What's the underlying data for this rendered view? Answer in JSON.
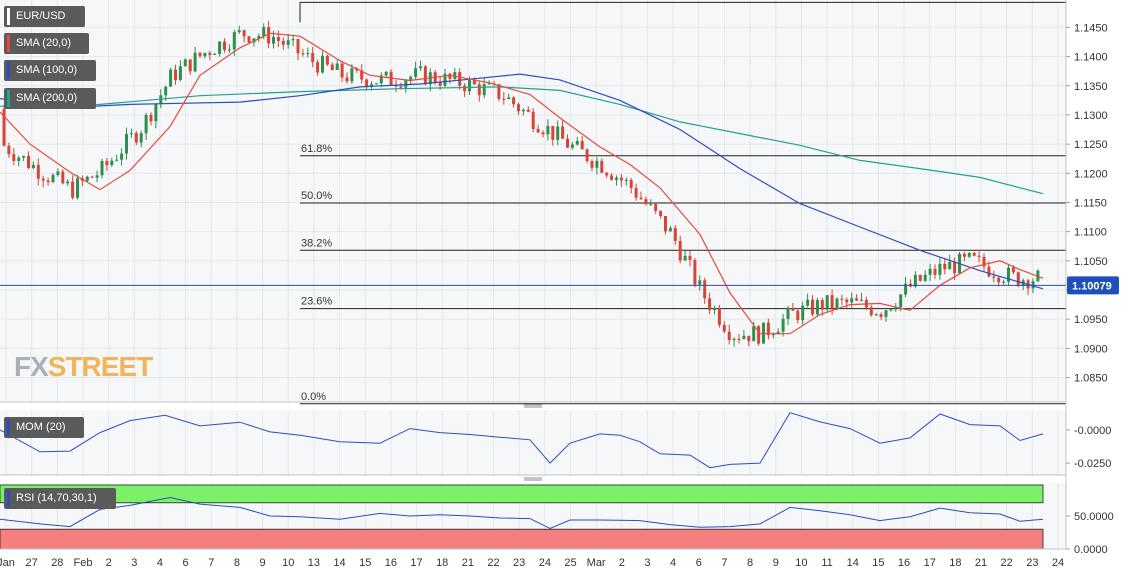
{
  "chart_data": [
    {
      "type": "candlestick",
      "symbol": "EUR/USD",
      "indicators": [
        {
          "label": "SMA (20,0)",
          "color": "#e84a3a"
        },
        {
          "label": "SMA (100,0)",
          "color": "#2a4ec0"
        },
        {
          "label": "SMA (200,0)",
          "color": "#22a38a"
        }
      ],
      "y_ticks": [
        "1.1450",
        "1.1400",
        "1.1350",
        "1.1300",
        "1.1250",
        "1.1200",
        "1.1150",
        "1.1100",
        "1.1050",
        "1.1000",
        "1.0950",
        "1.0900",
        "1.0850"
      ],
      "ylim": [
        1.0808,
        1.1497
      ],
      "last_price": "1.10079",
      "last_price_value": 1.10079,
      "fibonacci": [
        {
          "label": "61.8%",
          "value": 1.123
        },
        {
          "label": "50.0%",
          "value": 1.1149
        },
        {
          "label": "38.2%",
          "value": 1.1068
        },
        {
          "label": "23.6%",
          "value": 1.0968
        },
        {
          "label": "0.0%",
          "value": 1.0805
        }
      ],
      "swing_high": 1.1493,
      "x_ticks": [
        "Jan",
        "27",
        "28",
        "Feb",
        "2",
        "3",
        "4",
        "6",
        "7",
        "8",
        "9",
        "10",
        "13",
        "14",
        "15",
        "16",
        "17",
        "18",
        "21",
        "22",
        "23",
        "24",
        "25",
        "Mar",
        "2",
        "3",
        "4",
        "6",
        "7",
        "8",
        "9",
        "10",
        "11",
        "14",
        "15",
        "16",
        "17",
        "18",
        "21",
        "22",
        "23",
        "24"
      ],
      "sma20_points": [
        [
          0,
          1.1305
        ],
        [
          30,
          1.125
        ],
        [
          70,
          1.1202
        ],
        [
          100,
          1.1172
        ],
        [
          130,
          1.1205
        ],
        [
          170,
          1.128
        ],
        [
          200,
          1.1368
        ],
        [
          240,
          1.1415
        ],
        [
          270,
          1.144
        ],
        [
          300,
          1.1435
        ],
        [
          340,
          1.1393
        ],
        [
          370,
          1.1368
        ],
        [
          410,
          1.1359
        ],
        [
          450,
          1.1368
        ],
        [
          490,
          1.1355
        ],
        [
          530,
          1.1335
        ],
        [
          560,
          1.1295
        ],
        [
          600,
          1.1245
        ],
        [
          630,
          1.1215
        ],
        [
          660,
          1.1175
        ],
        [
          700,
          1.1095
        ],
        [
          730,
          1.0995
        ],
        [
          760,
          1.0925
        ],
        [
          790,
          1.0925
        ],
        [
          820,
          1.0958
        ],
        [
          850,
          1.0975
        ],
        [
          880,
          1.0977
        ],
        [
          910,
          1.0965
        ],
        [
          940,
          1.1008
        ],
        [
          970,
          1.1038
        ],
        [
          1000,
          1.105
        ],
        [
          1020,
          1.1035
        ],
        [
          1043,
          1.102
        ]
      ],
      "sma100_points": [
        [
          0,
          1.1328
        ],
        [
          70,
          1.1313
        ],
        [
          130,
          1.1318
        ],
        [
          180,
          1.132
        ],
        [
          240,
          1.1322
        ],
        [
          300,
          1.1333
        ],
        [
          360,
          1.1348
        ],
        [
          420,
          1.1353
        ],
        [
          480,
          1.1363
        ],
        [
          520,
          1.137
        ],
        [
          560,
          1.136
        ],
        [
          620,
          1.1325
        ],
        [
          680,
          1.1275
        ],
        [
          740,
          1.1208
        ],
        [
          800,
          1.1148
        ],
        [
          860,
          1.1108
        ],
        [
          920,
          1.1068
        ],
        [
          980,
          1.1033
        ],
        [
          1043,
          1.1002
        ]
      ],
      "sma200_points": [
        [
          0,
          1.1315
        ],
        [
          100,
          1.1318
        ],
        [
          200,
          1.1333
        ],
        [
          300,
          1.134
        ],
        [
          400,
          1.1345
        ],
        [
          500,
          1.1348
        ],
        [
          560,
          1.1342
        ],
        [
          620,
          1.1318
        ],
        [
          680,
          1.1288
        ],
        [
          740,
          1.1268
        ],
        [
          800,
          1.1248
        ],
        [
          860,
          1.1222
        ],
        [
          920,
          1.1208
        ],
        [
          980,
          1.1193
        ],
        [
          1043,
          1.1165
        ]
      ]
    },
    {
      "type": "line",
      "label": "MOM (20)",
      "color": "#2a4ec0",
      "y_ticks": [
        "-0.0000",
        "-0.0250"
      ],
      "ylim": [
        -0.034,
        0.015
      ],
      "points": [
        [
          0,
          0.0
        ],
        [
          40,
          -0.0165
        ],
        [
          70,
          -0.016
        ],
        [
          100,
          -0.002
        ],
        [
          130,
          0.007
        ],
        [
          165,
          0.011
        ],
        [
          200,
          0.003
        ],
        [
          240,
          0.0058
        ],
        [
          270,
          -0.0015
        ],
        [
          300,
          -0.004
        ],
        [
          340,
          -0.009
        ],
        [
          380,
          -0.01
        ],
        [
          410,
          0.001
        ],
        [
          440,
          -0.002
        ],
        [
          470,
          -0.0035
        ],
        [
          500,
          -0.0055
        ],
        [
          530,
          -0.0075
        ],
        [
          550,
          -0.025
        ],
        [
          570,
          -0.01
        ],
        [
          600,
          -0.003
        ],
        [
          620,
          -0.004
        ],
        [
          640,
          -0.009
        ],
        [
          660,
          -0.018
        ],
        [
          690,
          -0.019
        ],
        [
          710,
          -0.0285
        ],
        [
          730,
          -0.026
        ],
        [
          760,
          -0.025
        ],
        [
          790,
          0.013
        ],
        [
          820,
          0.006
        ],
        [
          850,
          0.001
        ],
        [
          880,
          -0.01
        ],
        [
          910,
          -0.006
        ],
        [
          940,
          0.012
        ],
        [
          970,
          0.004
        ],
        [
          1000,
          0.003
        ],
        [
          1020,
          -0.008
        ],
        [
          1043,
          -0.003
        ]
      ]
    },
    {
      "type": "line",
      "label": "RSI (14,70,30,1)",
      "color": "#2a4ec0",
      "overbought": 70,
      "oversold": 30,
      "y_ticks": [
        "50.0000",
        "0.0000"
      ],
      "ylim": [
        0,
        100
      ],
      "points": [
        [
          0,
          45
        ],
        [
          40,
          38
        ],
        [
          70,
          34
        ],
        [
          100,
          60
        ],
        [
          130,
          66
        ],
        [
          170,
          78
        ],
        [
          200,
          68
        ],
        [
          240,
          63
        ],
        [
          270,
          50
        ],
        [
          300,
          49
        ],
        [
          340,
          45
        ],
        [
          380,
          54
        ],
        [
          410,
          50
        ],
        [
          440,
          52
        ],
        [
          470,
          50
        ],
        [
          500,
          47
        ],
        [
          530,
          46
        ],
        [
          550,
          31
        ],
        [
          570,
          44
        ],
        [
          600,
          44
        ],
        [
          640,
          43
        ],
        [
          670,
          37
        ],
        [
          700,
          33
        ],
        [
          730,
          34
        ],
        [
          760,
          38
        ],
        [
          790,
          63
        ],
        [
          820,
          58
        ],
        [
          850,
          52
        ],
        [
          880,
          43
        ],
        [
          910,
          49
        ],
        [
          940,
          62
        ],
        [
          970,
          55
        ],
        [
          1000,
          53
        ],
        [
          1020,
          42
        ],
        [
          1043,
          45
        ]
      ]
    }
  ],
  "logo": {
    "part1": "FX",
    "part2": "STREET"
  }
}
